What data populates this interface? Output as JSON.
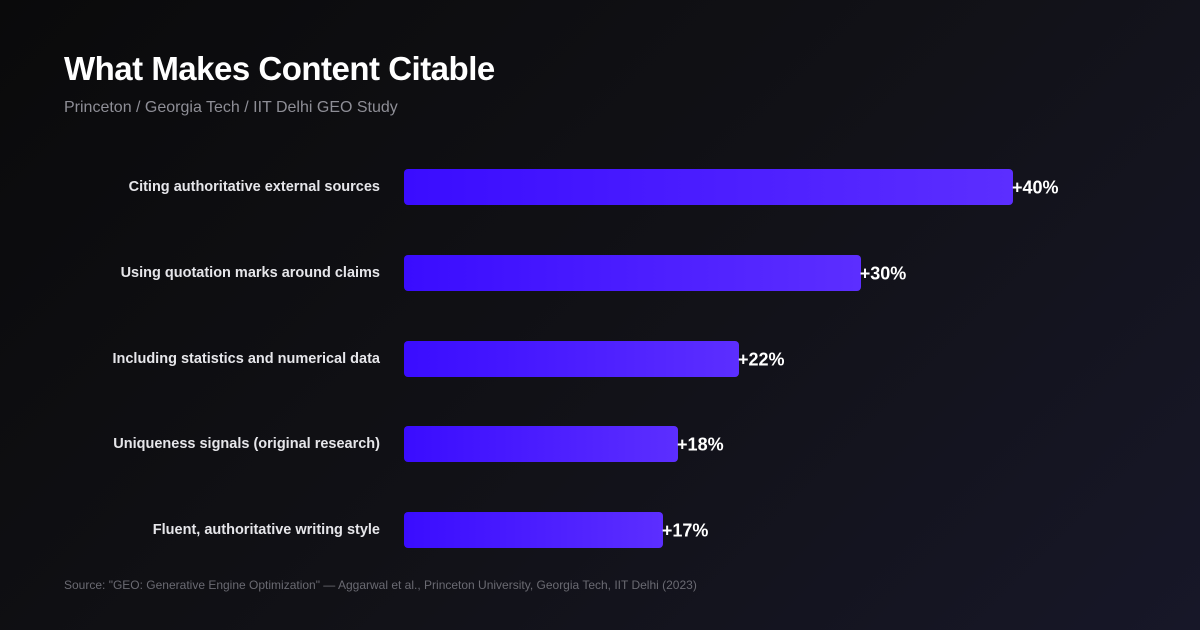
{
  "title": "What Makes Content Citable",
  "subtitle": "Princeton / Georgia Tech / IIT Delhi GEO Study",
  "source": "Source: \"GEO: Generative Engine Optimization\" — Aggarwal et al., Princeton University, Georgia Tech, IIT Delhi (2023)",
  "colors": {
    "bar_start": "#3a0cff",
    "bar_end": "#5c2eff",
    "background": "#0e0e12"
  },
  "chart_data": {
    "type": "bar",
    "orientation": "horizontal",
    "categories": [
      "Citing authoritative external sources",
      "Using quotation marks around claims",
      "Including statistics and numerical data",
      "Uniqueness signals (original research)",
      "Fluent, authoritative writing style"
    ],
    "values": [
      40,
      30,
      22,
      18,
      17
    ],
    "data_labels": [
      "+40%",
      "+30%",
      "+22%",
      "+18%",
      "+17%"
    ],
    "unit": "%",
    "grid": false,
    "xlim": [
      0,
      40
    ]
  }
}
